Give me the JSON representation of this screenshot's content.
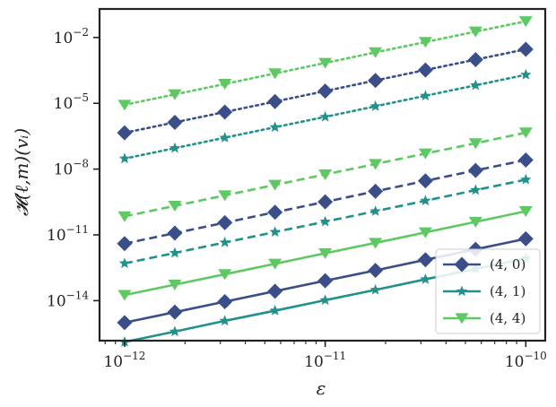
{
  "chart_data": {
    "type": "line",
    "xlabel": "ε",
    "ylabel": "𝓗(ℓ,m)(vᵢ)",
    "xscale": "log",
    "yscale": "log",
    "xlim": [
      7.5e-13,
      1.25e-10
    ],
    "ylim": [
      1.5e-16,
      0.2
    ],
    "grid": false,
    "legend_position": "lower-right",
    "x_ticks": [
      {
        "value": 1e-12,
        "base": "10",
        "exp": "−12"
      },
      {
        "value": 1e-11,
        "base": "10",
        "exp": "−11"
      },
      {
        "value": 1e-10,
        "base": "10",
        "exp": "−10"
      }
    ],
    "y_ticks": [
      {
        "value": 1e-14,
        "base": "10",
        "exp": "−14"
      },
      {
        "value": 1e-11,
        "base": "10",
        "exp": "−11"
      },
      {
        "value": 1e-08,
        "base": "10",
        "exp": "−8"
      },
      {
        "value": 1e-05,
        "base": "10",
        "exp": "−5"
      },
      {
        "value": 0.01,
        "base": "10",
        "exp": "−2"
      }
    ],
    "x": [
      1e-12,
      1.78e-12,
      3.16e-12,
      5.62e-12,
      1e-11,
      1.78e-11,
      3.16e-11,
      5.62e-11,
      1e-10
    ],
    "series": [
      {
        "name": "(4, 0)",
        "color": "#3a4f8a",
        "marker": "diamond",
        "linestyle": "solid",
        "legend": true,
        "values": [
          1e-15,
          3e-15,
          9e-15,
          2.7e-14,
          8.1e-14,
          2.4e-13,
          7.3e-13,
          2.2e-12,
          6.6e-12
        ]
      },
      {
        "name": "(4, 1)",
        "color": "#21918c",
        "marker": "star",
        "linestyle": "solid",
        "legend": true,
        "values": [
          1.3e-16,
          3.9e-16,
          1.2e-15,
          3.5e-15,
          1.05e-14,
          3.1e-14,
          9.4e-14,
          2.8e-13,
          8.5e-13
        ]
      },
      {
        "name": "(4, 4)",
        "color": "#5ec962",
        "marker": "triangle-down",
        "linestyle": "solid",
        "legend": true,
        "values": [
          1.8e-14,
          5.4e-14,
          1.6e-13,
          4.8e-13,
          1.45e-12,
          4.3e-12,
          1.3e-11,
          3.9e-11,
          1.2e-10
        ]
      },
      {
        "color": "#3a4f8a",
        "marker": "diamond",
        "linestyle": "dashed",
        "legend": false,
        "values": [
          4e-12,
          1.2e-11,
          3.6e-11,
          1.08e-10,
          3.2e-10,
          9.7e-10,
          2.9e-09,
          8.7e-09,
          2.6e-08
        ]
      },
      {
        "color": "#21918c",
        "marker": "star",
        "linestyle": "dashed",
        "legend": false,
        "values": [
          5e-13,
          1.5e-12,
          4.5e-12,
          1.35e-11,
          4e-11,
          1.2e-10,
          3.6e-10,
          1.1e-09,
          3.3e-09
        ]
      },
      {
        "color": "#5ec962",
        "marker": "triangle-down",
        "linestyle": "dashed",
        "legend": false,
        "values": [
          7e-11,
          2.1e-10,
          6.3e-10,
          1.9e-09,
          5.7e-09,
          1.7e-08,
          5.1e-08,
          1.5e-07,
          4.6e-07
        ]
      },
      {
        "color": "#3a4f8a",
        "marker": "diamond",
        "linestyle": "dotted",
        "legend": false,
        "values": [
          4.5e-07,
          1.35e-06,
          4e-06,
          1.2e-05,
          3.6e-05,
          0.00011,
          0.00033,
          0.00098,
          0.0029
        ]
      },
      {
        "color": "#21918c",
        "marker": "star",
        "linestyle": "dotted",
        "legend": false,
        "values": [
          3e-08,
          9e-08,
          2.7e-07,
          8.1e-07,
          2.4e-06,
          7.3e-06,
          2.2e-05,
          6.6e-05,
          0.0002
        ]
      },
      {
        "color": "#5ec962",
        "marker": "triangle-down",
        "linestyle": "dotted",
        "legend": false,
        "values": [
          8.5e-06,
          2.55e-05,
          7.6e-05,
          0.00023,
          0.00069,
          0.0021,
          0.0062,
          0.0185,
          0.055
        ]
      }
    ]
  }
}
